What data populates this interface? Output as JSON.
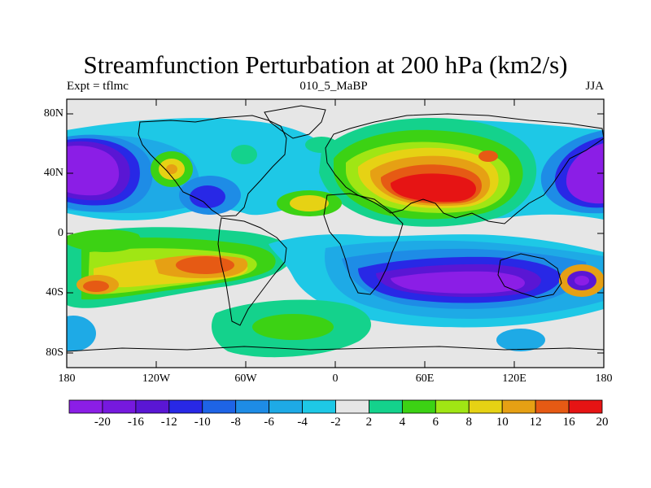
{
  "title": "Streamfunction Perturbation at 200 hPa (km2/s)",
  "left_string": "Expt = tflmc",
  "center_string": "010_5_MaBP",
  "right_string": "JJA",
  "lat_labels": [
    "80N",
    "40N",
    "0",
    "40S",
    "80S"
  ],
  "lon_labels": [
    "180",
    "120W",
    "60W",
    "0",
    "60E",
    "120E",
    "180"
  ],
  "colorbar": {
    "labels": [
      "-20",
      "-16",
      "-12",
      "-10",
      "-8",
      "-6",
      "-4",
      "-2",
      "2",
      "4",
      "6",
      "8",
      "10",
      "12",
      "16",
      "20"
    ],
    "colors": [
      "#8b1ee6",
      "#7619de",
      "#5a16d4",
      "#2828e6",
      "#1e64e6",
      "#1e8ce6",
      "#1eaae6",
      "#1ec8e6",
      "#e6e6e6",
      "#14d28c",
      "#3cd214",
      "#a0e614",
      "#e6d214",
      "#e6a014",
      "#e65a14",
      "#e61414"
    ]
  }
}
